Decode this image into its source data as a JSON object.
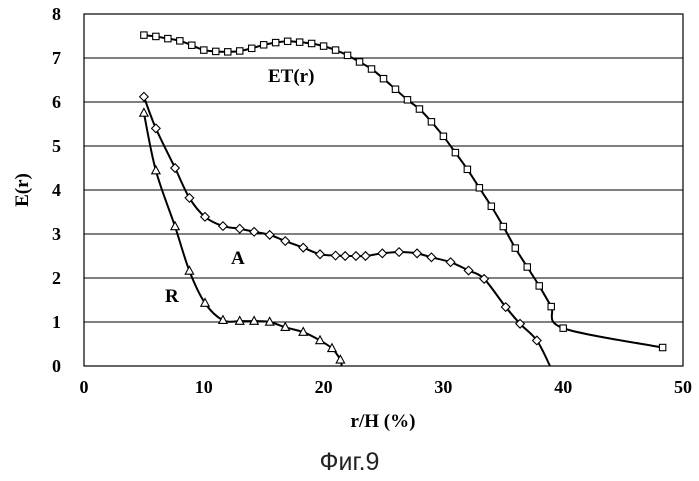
{
  "caption": "Фиг.9",
  "chart_data": {
    "type": "line",
    "xlabel": "r/H  (%)",
    "ylabel": "E(r)",
    "xlim": [
      0,
      50
    ],
    "ylim": [
      0,
      8
    ],
    "x_ticks": [
      0,
      10,
      20,
      30,
      40,
      50
    ],
    "y_ticks": [
      0,
      1,
      2,
      3,
      4,
      5,
      6,
      7,
      8
    ],
    "grid": "horizontal",
    "series": [
      {
        "name": "ET(r)",
        "marker": "square",
        "points": [
          [
            5,
            7.52
          ],
          [
            6,
            7.49
          ],
          [
            7,
            7.44
          ],
          [
            8,
            7.39
          ],
          [
            9,
            7.29
          ],
          [
            10,
            7.18
          ],
          [
            11,
            7.15
          ],
          [
            12,
            7.14
          ],
          [
            13,
            7.16
          ],
          [
            14,
            7.22
          ],
          [
            15,
            7.3
          ],
          [
            16,
            7.35
          ],
          [
            17,
            7.38
          ],
          [
            18,
            7.36
          ],
          [
            19,
            7.33
          ],
          [
            20,
            7.27
          ],
          [
            21,
            7.18
          ],
          [
            22,
            7.06
          ],
          [
            23,
            6.91
          ],
          [
            24,
            6.75
          ],
          [
            25,
            6.53
          ],
          [
            26,
            6.29
          ],
          [
            27,
            6.05
          ],
          [
            28,
            5.84
          ],
          [
            29,
            5.55
          ],
          [
            30,
            5.22
          ],
          [
            31,
            4.85
          ],
          [
            32,
            4.47
          ],
          [
            33,
            4.05
          ],
          [
            34,
            3.63
          ],
          [
            35,
            3.17
          ],
          [
            36,
            2.68
          ],
          [
            37,
            2.25
          ],
          [
            38,
            1.82
          ],
          [
            39,
            1.35
          ],
          [
            40,
            0.86
          ],
          [
            48.3,
            0.42
          ]
        ]
      },
      {
        "name": "A",
        "marker": "diamond",
        "points": [
          [
            5,
            6.12
          ],
          [
            6,
            5.4
          ],
          [
            7.6,
            4.5
          ],
          [
            8.8,
            3.82
          ],
          [
            10.1,
            3.39
          ],
          [
            11.6,
            3.18
          ],
          [
            13,
            3.12
          ],
          [
            14.2,
            3.05
          ],
          [
            15.5,
            2.98
          ],
          [
            16.8,
            2.84
          ],
          [
            18.3,
            2.69
          ],
          [
            19.7,
            2.54
          ],
          [
            21,
            2.51
          ],
          [
            21.8,
            2.5
          ],
          [
            22.7,
            2.5
          ],
          [
            23.5,
            2.5
          ],
          [
            24.9,
            2.56
          ],
          [
            26.3,
            2.59
          ],
          [
            27.8,
            2.56
          ],
          [
            29,
            2.47
          ],
          [
            30.6,
            2.36
          ],
          [
            32.1,
            2.17
          ],
          [
            33.4,
            1.98
          ],
          [
            35.2,
            1.34
          ],
          [
            36.4,
            0.96
          ],
          [
            37.8,
            0.58
          ]
        ],
        "end_point": [
          38.9,
          0
        ]
      },
      {
        "name": "R",
        "marker": "triangle",
        "points": [
          [
            5,
            5.75
          ],
          [
            6,
            4.44
          ],
          [
            7.6,
            3.17
          ],
          [
            8.8,
            2.16
          ],
          [
            10.1,
            1.43
          ],
          [
            11.6,
            1.04
          ],
          [
            13,
            1.02
          ],
          [
            14.2,
            1.02
          ],
          [
            15.5,
            1.0
          ],
          [
            16.8,
            0.88
          ],
          [
            18.3,
            0.77
          ],
          [
            19.7,
            0.58
          ],
          [
            20.7,
            0.4
          ],
          [
            21.4,
            0.14
          ]
        ],
        "end_point": [
          21.5,
          0
        ]
      }
    ],
    "annotations": [
      "ET(r)",
      "A",
      "R"
    ]
  }
}
